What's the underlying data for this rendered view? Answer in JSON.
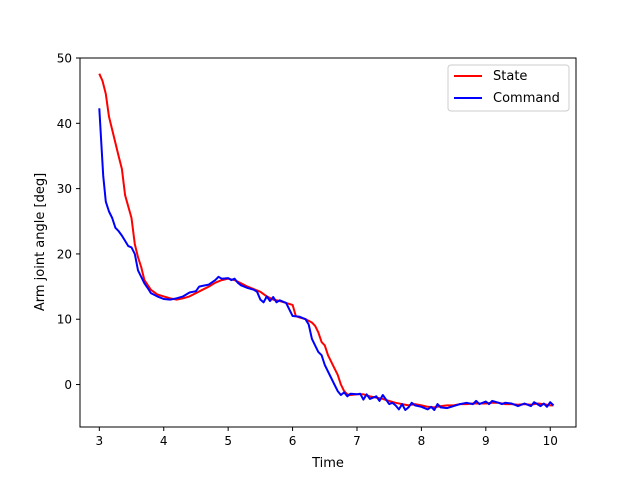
{
  "chart_data": {
    "type": "line",
    "title": "",
    "xlabel": "Time",
    "ylabel": "Arm joint angle [deg]",
    "xlim": [
      2.7,
      10.4
    ],
    "ylim": [
      -6.5,
      50
    ],
    "xticks": [
      3,
      4,
      5,
      6,
      7,
      8,
      9,
      10
    ],
    "xtick_labels": [
      "3",
      "4",
      "5",
      "6",
      "7",
      "8",
      "9",
      "10"
    ],
    "yticks": [
      0,
      10,
      20,
      30,
      40,
      50
    ],
    "ytick_labels": [
      "0",
      "10",
      "20",
      "30",
      "40",
      "50"
    ],
    "grid": false,
    "legend_position": "top-right",
    "series": [
      {
        "name": "State",
        "color": "#ff0000",
        "points": [
          [
            3.0,
            47.6
          ],
          [
            3.05,
            46.5
          ],
          [
            3.1,
            44.5
          ],
          [
            3.15,
            41.0
          ],
          [
            3.2,
            39.0
          ],
          [
            3.25,
            37.0
          ],
          [
            3.3,
            35.0
          ],
          [
            3.35,
            33.0
          ],
          [
            3.4,
            29.0
          ],
          [
            3.5,
            25.5
          ],
          [
            3.55,
            21.5
          ],
          [
            3.6,
            19.5
          ],
          [
            3.65,
            18.0
          ],
          [
            3.7,
            16.0
          ],
          [
            3.8,
            14.5
          ],
          [
            3.9,
            13.8
          ],
          [
            4.0,
            13.5
          ],
          [
            4.1,
            13.2
          ],
          [
            4.2,
            13.0
          ],
          [
            4.3,
            13.2
          ],
          [
            4.4,
            13.5
          ],
          [
            4.5,
            14.0
          ],
          [
            4.6,
            14.5
          ],
          [
            4.7,
            15.0
          ],
          [
            4.8,
            15.6
          ],
          [
            4.9,
            16.0
          ],
          [
            5.0,
            16.2
          ],
          [
            5.1,
            16.0
          ],
          [
            5.2,
            15.5
          ],
          [
            5.3,
            15.0
          ],
          [
            5.4,
            14.6
          ],
          [
            5.5,
            14.2
          ],
          [
            5.6,
            13.5
          ],
          [
            5.7,
            13.0
          ],
          [
            5.8,
            12.8
          ],
          [
            5.9,
            12.5
          ],
          [
            6.0,
            12.2
          ],
          [
            6.05,
            10.5
          ],
          [
            6.1,
            10.3
          ],
          [
            6.2,
            10.0
          ],
          [
            6.3,
            9.5
          ],
          [
            6.35,
            9.0
          ],
          [
            6.4,
            8.0
          ],
          [
            6.45,
            6.5
          ],
          [
            6.5,
            6.0
          ],
          [
            6.55,
            4.5
          ],
          [
            6.6,
            3.5
          ],
          [
            6.65,
            2.5
          ],
          [
            6.7,
            1.5
          ],
          [
            6.75,
            0.0
          ],
          [
            6.8,
            -1.0
          ],
          [
            6.85,
            -1.5
          ],
          [
            6.9,
            -1.6
          ],
          [
            7.0,
            -1.5
          ],
          [
            7.1,
            -1.5
          ],
          [
            7.2,
            -1.8
          ],
          [
            7.3,
            -2.0
          ],
          [
            7.4,
            -2.2
          ],
          [
            7.5,
            -2.5
          ],
          [
            7.6,
            -2.8
          ],
          [
            7.7,
            -3.0
          ],
          [
            7.8,
            -3.2
          ],
          [
            7.9,
            -3.0
          ],
          [
            8.0,
            -3.2
          ],
          [
            8.1,
            -3.4
          ],
          [
            8.2,
            -3.5
          ],
          [
            8.3,
            -3.3
          ],
          [
            8.4,
            -3.2
          ],
          [
            8.5,
            -3.2
          ],
          [
            8.6,
            -3.0
          ],
          [
            8.7,
            -3.0
          ],
          [
            8.8,
            -2.9
          ],
          [
            8.9,
            -2.9
          ],
          [
            9.0,
            -2.9
          ],
          [
            9.1,
            -2.8
          ],
          [
            9.2,
            -2.8
          ],
          [
            9.3,
            -3.0
          ],
          [
            9.4,
            -3.0
          ],
          [
            9.5,
            -3.1
          ],
          [
            9.6,
            -3.0
          ],
          [
            9.7,
            -3.1
          ],
          [
            9.8,
            -2.9
          ],
          [
            9.9,
            -3.0
          ],
          [
            10.0,
            -3.2
          ],
          [
            10.05,
            -3.2
          ]
        ]
      },
      {
        "name": "Command",
        "color": "#0000ff",
        "points": [
          [
            3.0,
            42.3
          ],
          [
            3.03,
            37.0
          ],
          [
            3.06,
            32.0
          ],
          [
            3.1,
            28.0
          ],
          [
            3.15,
            26.5
          ],
          [
            3.2,
            25.5
          ],
          [
            3.25,
            24.0
          ],
          [
            3.3,
            23.5
          ],
          [
            3.35,
            22.8
          ],
          [
            3.4,
            22.0
          ],
          [
            3.45,
            21.2
          ],
          [
            3.5,
            21.0
          ],
          [
            3.55,
            20.0
          ],
          [
            3.6,
            17.5
          ],
          [
            3.65,
            16.5
          ],
          [
            3.7,
            15.5
          ],
          [
            3.75,
            14.8
          ],
          [
            3.8,
            14.0
          ],
          [
            3.9,
            13.5
          ],
          [
            4.0,
            13.1
          ],
          [
            4.1,
            13.0
          ],
          [
            4.2,
            13.2
          ],
          [
            4.3,
            13.5
          ],
          [
            4.4,
            14.1
          ],
          [
            4.5,
            14.3
          ],
          [
            4.55,
            15.0
          ],
          [
            4.6,
            15.1
          ],
          [
            4.7,
            15.3
          ],
          [
            4.8,
            16.0
          ],
          [
            4.85,
            16.5
          ],
          [
            4.9,
            16.2
          ],
          [
            5.0,
            16.3
          ],
          [
            5.05,
            16.0
          ],
          [
            5.1,
            16.2
          ],
          [
            5.15,
            15.6
          ],
          [
            5.2,
            15.2
          ],
          [
            5.3,
            14.8
          ],
          [
            5.4,
            14.5
          ],
          [
            5.45,
            14.2
          ],
          [
            5.5,
            13.0
          ],
          [
            5.55,
            12.6
          ],
          [
            5.6,
            13.5
          ],
          [
            5.65,
            12.8
          ],
          [
            5.7,
            13.4
          ],
          [
            5.75,
            12.6
          ],
          [
            5.8,
            12.9
          ],
          [
            5.9,
            12.5
          ],
          [
            6.0,
            10.5
          ],
          [
            6.1,
            10.4
          ],
          [
            6.2,
            10.0
          ],
          [
            6.25,
            9.2
          ],
          [
            6.3,
            7.0
          ],
          [
            6.35,
            6.0
          ],
          [
            6.4,
            5.0
          ],
          [
            6.45,
            4.5
          ],
          [
            6.5,
            3.0
          ],
          [
            6.55,
            2.0
          ],
          [
            6.6,
            1.0
          ],
          [
            6.65,
            0.0
          ],
          [
            6.7,
            -1.0
          ],
          [
            6.75,
            -1.6
          ],
          [
            6.8,
            -1.2
          ],
          [
            6.85,
            -1.8
          ],
          [
            6.9,
            -1.4
          ],
          [
            7.0,
            -1.5
          ],
          [
            7.05,
            -1.4
          ],
          [
            7.1,
            -2.3
          ],
          [
            7.15,
            -1.5
          ],
          [
            7.2,
            -2.2
          ],
          [
            7.3,
            -1.8
          ],
          [
            7.35,
            -2.5
          ],
          [
            7.4,
            -1.6
          ],
          [
            7.5,
            -3.0
          ],
          [
            7.55,
            -2.8
          ],
          [
            7.6,
            -3.2
          ],
          [
            7.65,
            -3.8
          ],
          [
            7.7,
            -3.0
          ],
          [
            7.75,
            -3.9
          ],
          [
            7.8,
            -3.5
          ],
          [
            7.85,
            -2.8
          ],
          [
            7.9,
            -3.2
          ],
          [
            8.0,
            -3.4
          ],
          [
            8.1,
            -3.8
          ],
          [
            8.15,
            -3.4
          ],
          [
            8.2,
            -3.9
          ],
          [
            8.25,
            -3.0
          ],
          [
            8.3,
            -3.5
          ],
          [
            8.4,
            -3.6
          ],
          [
            8.5,
            -3.3
          ],
          [
            8.6,
            -3.0
          ],
          [
            8.7,
            -2.8
          ],
          [
            8.8,
            -3.0
          ],
          [
            8.85,
            -2.5
          ],
          [
            8.9,
            -3.0
          ],
          [
            9.0,
            -2.6
          ],
          [
            9.05,
            -3.0
          ],
          [
            9.1,
            -2.5
          ],
          [
            9.2,
            -2.8
          ],
          [
            9.25,
            -3.0
          ],
          [
            9.3,
            -2.8
          ],
          [
            9.4,
            -2.9
          ],
          [
            9.5,
            -3.3
          ],
          [
            9.6,
            -2.9
          ],
          [
            9.7,
            -3.3
          ],
          [
            9.75,
            -2.7
          ],
          [
            9.8,
            -3.0
          ],
          [
            9.85,
            -3.3
          ],
          [
            9.9,
            -2.9
          ],
          [
            9.95,
            -3.4
          ],
          [
            10.0,
            -2.7
          ],
          [
            10.05,
            -3.2
          ]
        ]
      }
    ]
  }
}
